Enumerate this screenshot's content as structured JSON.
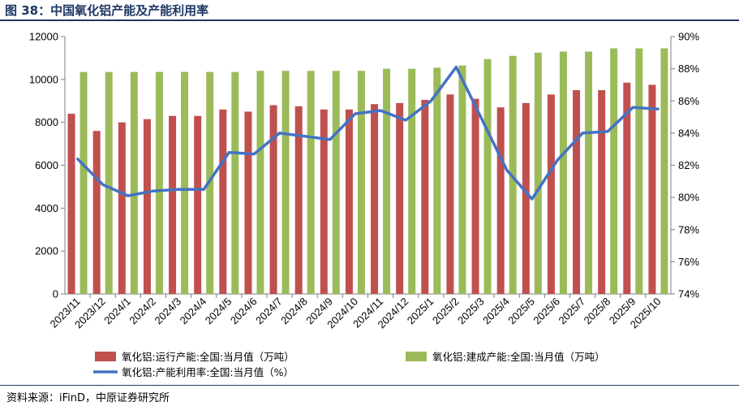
{
  "figure": {
    "title": "图 38：中国氧化铝产能及产能利用率",
    "source": "资料来源：iFinD，中原证券研究所"
  },
  "chart_data": {
    "type": "bar",
    "categories": [
      "2023/11",
      "2023/12",
      "2024/1",
      "2024/2",
      "2024/3",
      "2024/4",
      "2024/5",
      "2024/6",
      "2024/7",
      "2024/8",
      "2024/9",
      "2024/10",
      "2024/11",
      "2024/12",
      "2025/1",
      "2025/2",
      "2025/3",
      "2025/4",
      "2025/5",
      "2025/6",
      "2025/7",
      "2025/8",
      "2025/9",
      "2025/10"
    ],
    "series": [
      {
        "name": "氧化铝:运行产能:全国:当月值（万吨）",
        "type": "bar",
        "axis": "left",
        "color": "#c0504d",
        "values": [
          8400,
          7600,
          8000,
          8150,
          8300,
          8300,
          8600,
          8500,
          8800,
          8750,
          8600,
          8600,
          8850,
          8900,
          9050,
          9300,
          9100,
          8700,
          8900,
          9300,
          9500,
          9500,
          9850,
          9750
        ]
      },
      {
        "name": "氧化铝:建成产能:全国:当月值（万吨）",
        "type": "bar",
        "axis": "left",
        "color": "#9bbb59",
        "values": [
          10350,
          10350,
          10350,
          10350,
          10350,
          10350,
          10350,
          10400,
          10400,
          10400,
          10400,
          10400,
          10500,
          10500,
          10550,
          10650,
          10950,
          11100,
          11250,
          11300,
          11300,
          11450,
          11450,
          11450
        ]
      },
      {
        "name": "氧化铝:产能利用率:全国:当月值（%）",
        "type": "line",
        "axis": "right",
        "color": "#4472c4",
        "values": [
          82.4,
          80.8,
          80.1,
          80.4,
          80.5,
          80.5,
          82.8,
          82.7,
          84.0,
          83.8,
          83.6,
          85.2,
          85.4,
          84.8,
          86.0,
          88.1,
          84.9,
          81.7,
          79.9,
          82.3,
          84.0,
          84.1,
          85.6,
          85.5
        ]
      }
    ],
    "ylim_left": [
      0,
      12000
    ],
    "yticks_left": [
      "0",
      "2000",
      "4000",
      "6000",
      "8000",
      "10000",
      "12000"
    ],
    "ylim_right": [
      74,
      90
    ],
    "yticks_right": [
      "74%",
      "76%",
      "78%",
      "80%",
      "82%",
      "84%",
      "86%",
      "88%",
      "90%"
    ],
    "grid": false,
    "legend": "bottom"
  }
}
